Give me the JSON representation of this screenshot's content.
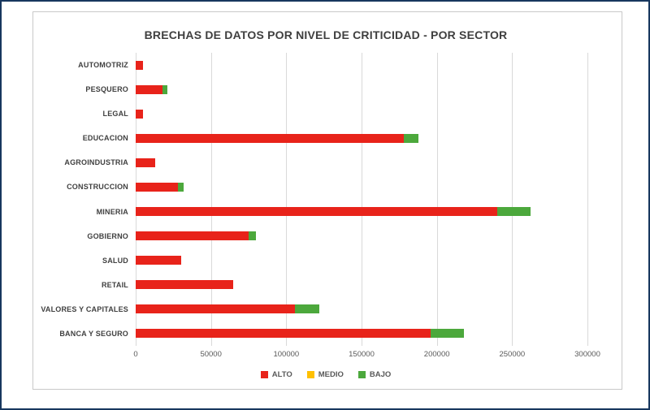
{
  "frame": {
    "outer_border_color": "#17375e",
    "inner_border_color": "#c9c9c9"
  },
  "chart_data": {
    "type": "bar",
    "orientation": "horizontal",
    "stacked": true,
    "title": "BRECHAS DE DATOS POR NIVEL DE CRITICIDAD - POR SECTOR",
    "categories": [
      "AUTOMOTRIZ",
      "PESQUERO",
      "LEGAL",
      "EDUCACION",
      "AGROINDUSTRIA",
      "CONSTRUCCION",
      "MINERIA",
      "GOBIERNO",
      "SALUD",
      "RETAIL",
      "VALORES Y CAPITALES",
      "BANCA Y SEGURO"
    ],
    "series": [
      {
        "name": "ALTO",
        "color": "#e8231a",
        "values": [
          5000,
          18000,
          5000,
          178000,
          13000,
          28000,
          240000,
          75000,
          30000,
          65000,
          106000,
          196000
        ]
      },
      {
        "name": "MEDIO",
        "color": "#ffc000",
        "values": [
          0,
          0,
          0,
          0,
          0,
          0,
          0,
          0,
          0,
          0,
          0,
          0
        ]
      },
      {
        "name": "BAJO",
        "color": "#4ca83c",
        "values": [
          0,
          3000,
          0,
          10000,
          0,
          4000,
          22000,
          5000,
          0,
          0,
          16000,
          22000
        ]
      }
    ],
    "xlabel": "",
    "ylabel": "",
    "xlim": [
      0,
      300000
    ],
    "x_ticks": [
      0,
      50000,
      100000,
      150000,
      200000,
      250000,
      300000
    ],
    "grid": "vertical",
    "gridline_color": "#d9d9d9",
    "legend_position": "bottom"
  }
}
